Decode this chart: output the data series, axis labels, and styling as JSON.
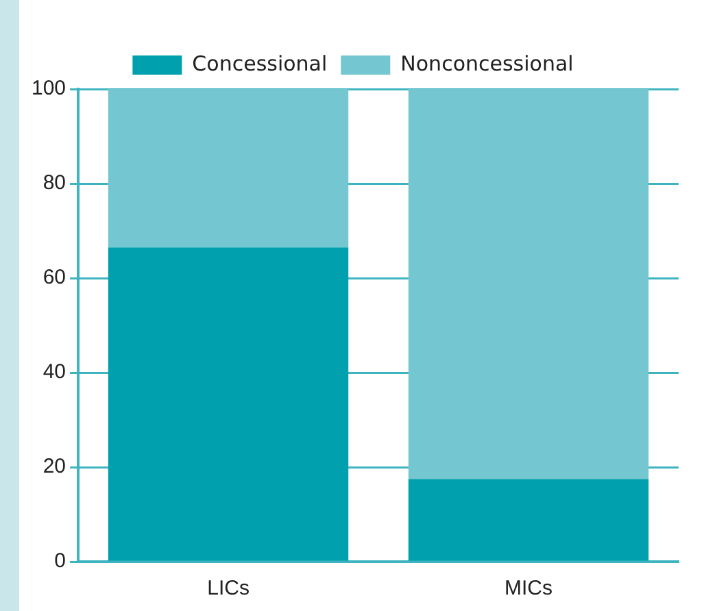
{
  "chart_data": {
    "type": "bar",
    "stacked": true,
    "categories": [
      "LICs",
      "MICs"
    ],
    "series": [
      {
        "name": "Concessional",
        "color": "#00a0ae",
        "values": [
          66.5,
          17.5
        ]
      },
      {
        "name": "Nonconcessional",
        "color": "#74c6d0",
        "values": [
          33.5,
          82.5
        ]
      }
    ],
    "ylim": [
      0,
      100
    ],
    "yticks": [
      0,
      20,
      40,
      60,
      80,
      100
    ],
    "grid": "y",
    "legend": "top"
  }
}
